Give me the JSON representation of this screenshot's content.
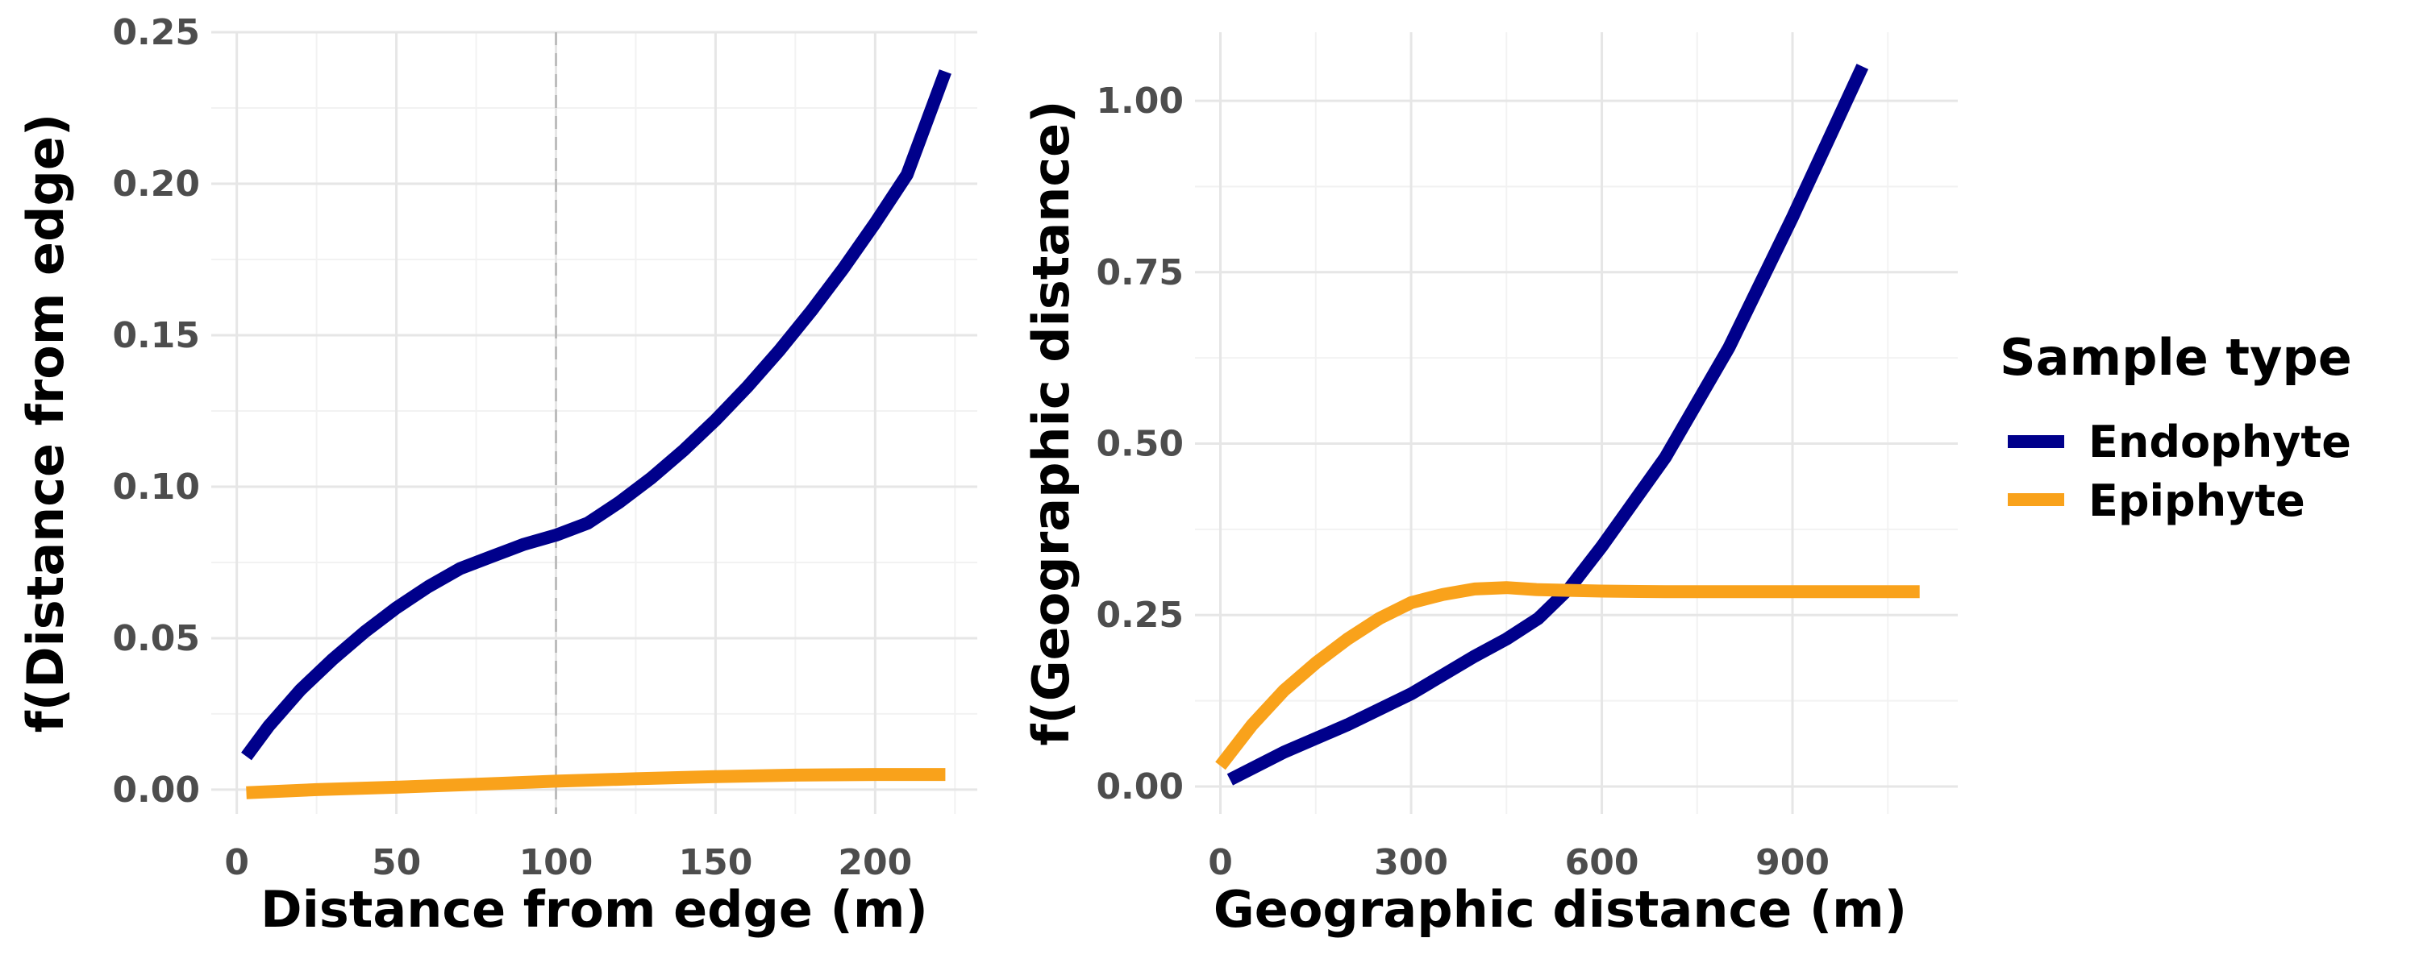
{
  "colors": {
    "Endophyte": "#00008B",
    "Epiphyte": "#F9A21B",
    "reference_line": "#bdbdbd"
  },
  "legend": {
    "title": "Sample type",
    "entries": [
      {
        "label": "Endophyte",
        "color": "#00008B"
      },
      {
        "label": "Epiphyte",
        "color": "#F9A21B"
      }
    ]
  },
  "chart_data": [
    {
      "type": "line",
      "title": "",
      "xlabel": "Distance from edge (m)",
      "ylabel": "f(Distance from edge)",
      "xlim": [
        -8,
        232
      ],
      "ylim": [
        -0.008,
        0.25
      ],
      "xticks": [
        0,
        50,
        100,
        150,
        200
      ],
      "xtick_labels": [
        "0",
        "50",
        "100",
        "150",
        "200"
      ],
      "yticks": [
        0,
        0.05,
        0.1,
        0.15,
        0.2,
        0.25
      ],
      "ytick_labels": [
        "0.00",
        "0.05",
        "0.10",
        "0.15",
        "0.20",
        "0.25"
      ],
      "vline": 100,
      "grid": true,
      "series": [
        {
          "name": "Endophyte",
          "x": [
            3,
            10,
            20,
            30,
            40,
            50,
            60,
            70,
            80,
            90,
            100,
            110,
            120,
            130,
            140,
            150,
            160,
            170,
            180,
            190,
            200,
            210,
            222
          ],
          "y": [
            0.011,
            0.021,
            0.033,
            0.043,
            0.052,
            0.06,
            0.067,
            0.073,
            0.077,
            0.081,
            0.084,
            0.088,
            0.095,
            0.103,
            0.112,
            0.122,
            0.133,
            0.145,
            0.158,
            0.172,
            0.187,
            0.203,
            0.237
          ]
        },
        {
          "name": "Epiphyte",
          "x": [
            3,
            25,
            50,
            75,
            100,
            125,
            150,
            175,
            200,
            222
          ],
          "y": [
            -0.001,
            0.0,
            0.0008,
            0.0018,
            0.0028,
            0.0036,
            0.0043,
            0.0048,
            0.005,
            0.005
          ]
        }
      ]
    },
    {
      "type": "line",
      "title": "",
      "xlabel": "Geographic distance (m)",
      "ylabel": "f(Geographic distance)",
      "xlim": [
        -40,
        1160
      ],
      "ylim": [
        -0.04,
        1.1
      ],
      "xticks": [
        0,
        300,
        600,
        900
      ],
      "xtick_labels": [
        "0",
        "300",
        "600",
        "900"
      ],
      "yticks": [
        0,
        0.25,
        0.5,
        0.75,
        1.0
      ],
      "ytick_labels": [
        "0.00",
        "0.25",
        "0.50",
        "0.75",
        "1.00"
      ],
      "grid": true,
      "series": [
        {
          "name": "Endophyte",
          "x": [
            15,
            100,
            200,
            300,
            400,
            450,
            500,
            550,
            600,
            700,
            800,
            900,
            1010
          ],
          "y": [
            0.01,
            0.05,
            0.09,
            0.135,
            0.19,
            0.215,
            0.245,
            0.29,
            0.35,
            0.48,
            0.64,
            0.83,
            1.05
          ]
        },
        {
          "name": "Epiphyte",
          "x": [
            0,
            50,
            100,
            150,
            200,
            250,
            300,
            350,
            400,
            450,
            500,
            600,
            700,
            800,
            900,
            1000,
            1100
          ],
          "y": [
            0.03,
            0.09,
            0.14,
            0.18,
            0.215,
            0.245,
            0.268,
            0.28,
            0.288,
            0.29,
            0.287,
            0.285,
            0.284,
            0.284,
            0.284,
            0.284,
            0.284
          ]
        }
      ]
    }
  ]
}
